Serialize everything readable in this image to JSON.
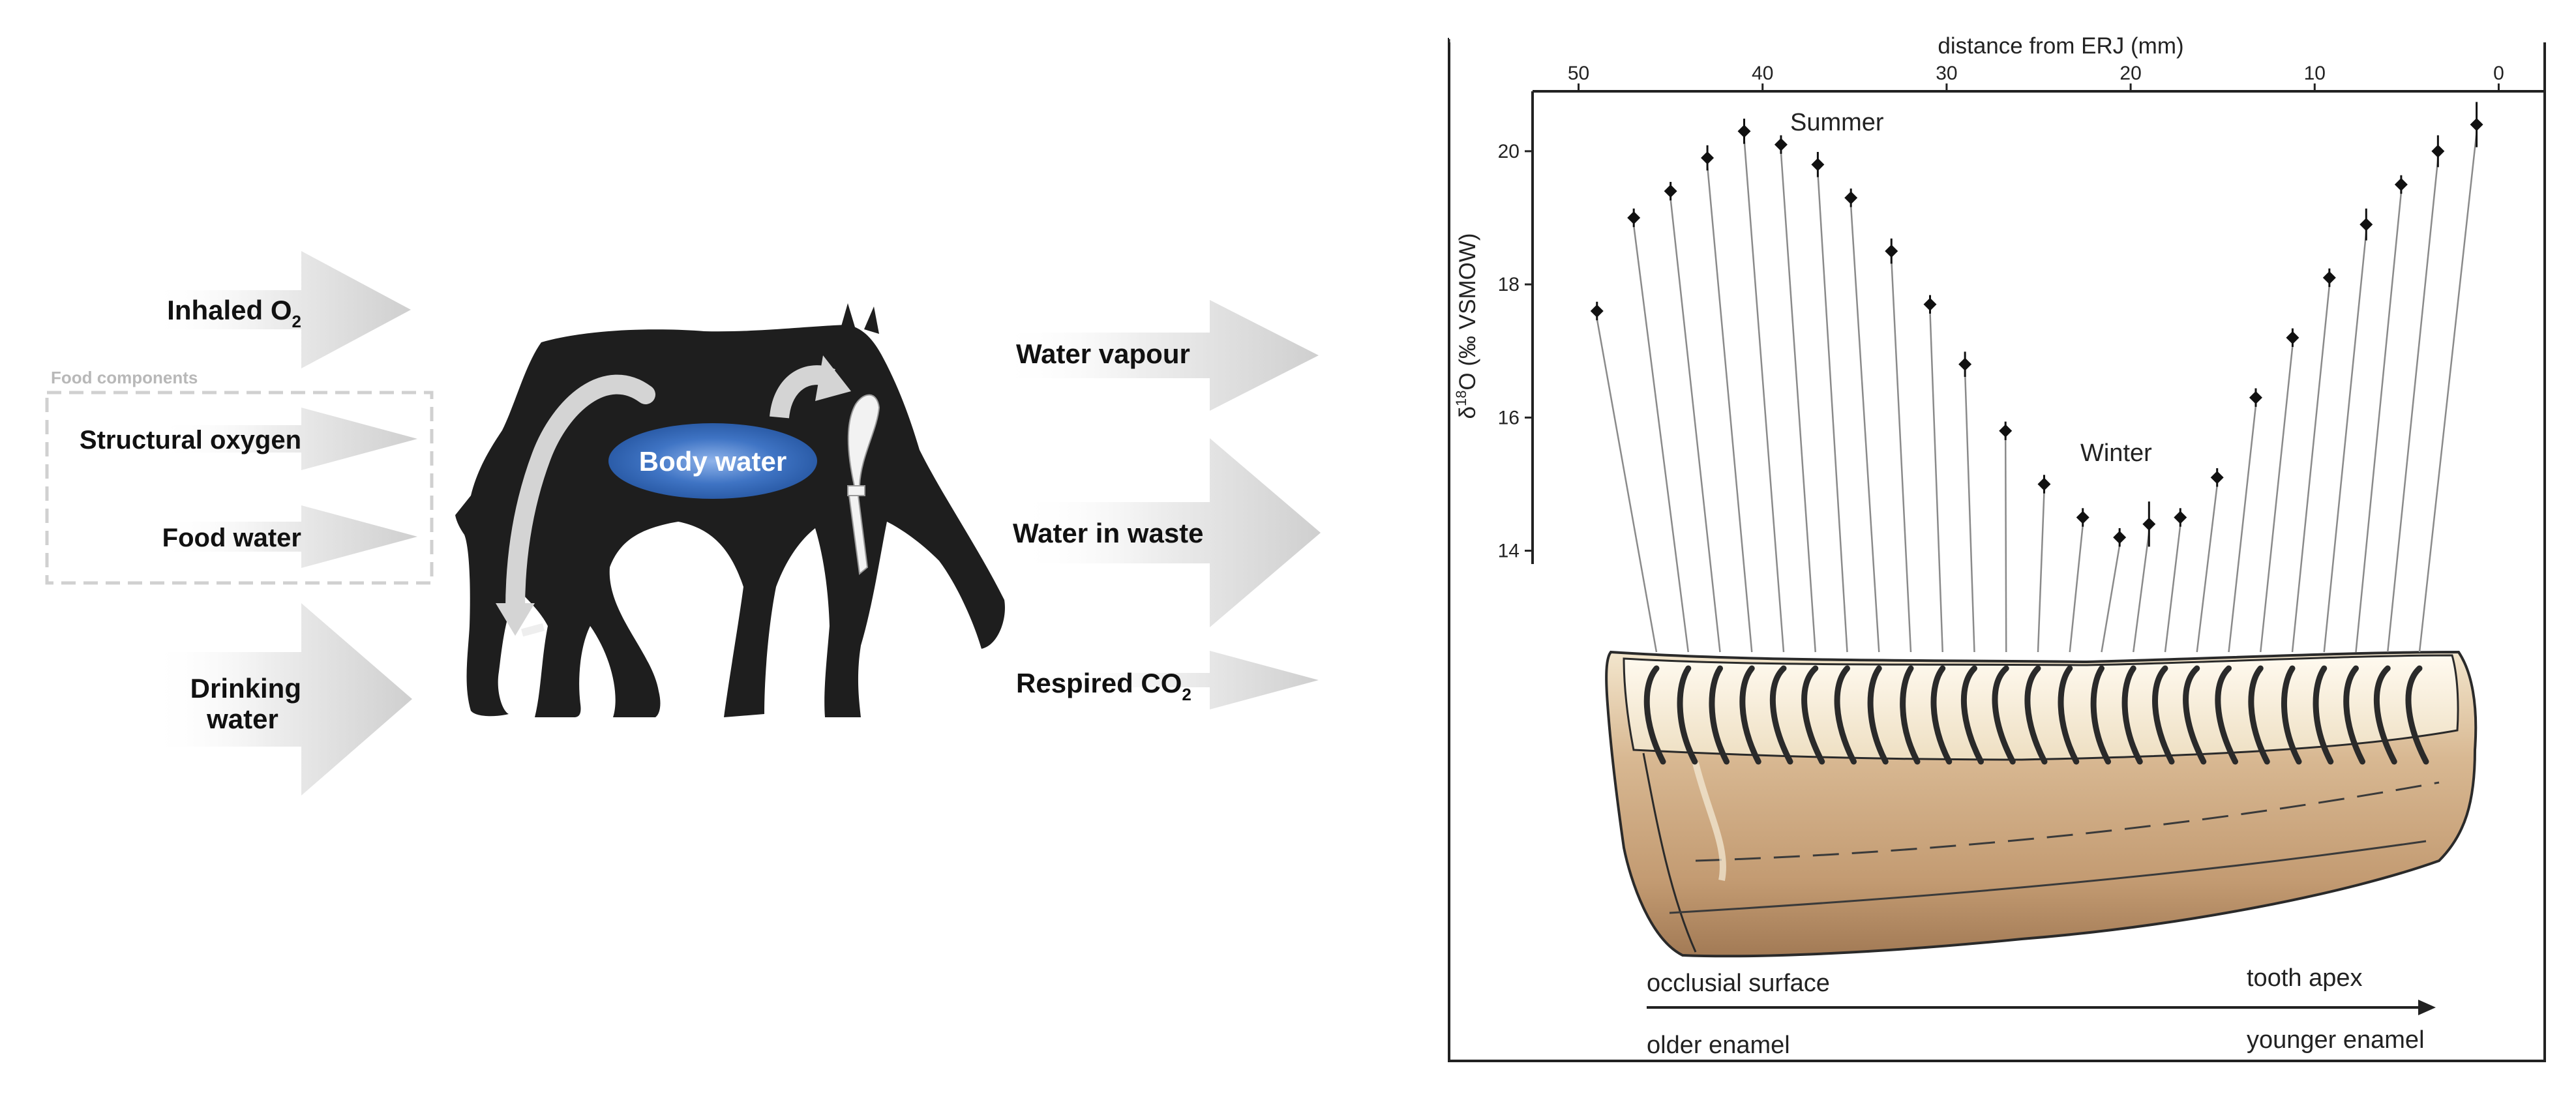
{
  "left_diagram": {
    "inputs": {
      "inhaled_o2": {
        "text": "Inhaled O",
        "sub": "2"
      },
      "food_group_label": "Food components",
      "structural_oxygen": "Structural oxygen",
      "food_water": "Food water",
      "drinking_water_line1": "Drinking",
      "drinking_water_line2": "water"
    },
    "center": {
      "body_water": "Body water"
    },
    "outputs": {
      "water_vapour": "Water vapour",
      "water_in_waste": "Water in waste",
      "respired_co2": {
        "text": "Respired CO",
        "sub": "2"
      }
    }
  },
  "chart_data": {
    "type": "scatter",
    "x_axis_title": "distance from ERJ (mm)",
    "x_ticks": [
      50,
      40,
      30,
      20,
      10,
      0
    ],
    "x_range": [
      52.5,
      -2.5
    ],
    "y_axis_title": {
      "prefix": "δ",
      "sup": "18",
      "suffix": "O (‰ VSMOW)"
    },
    "y_ticks": [
      14,
      16,
      18,
      20
    ],
    "y_range": [
      13.8,
      20.9
    ],
    "annotations": {
      "summer": "Summer",
      "winter": "Winter"
    },
    "points": [
      {
        "x": 49.0,
        "y": 17.6,
        "err": 0.1
      },
      {
        "x": 47.0,
        "y": 19.0,
        "err": 0.1
      },
      {
        "x": 45.0,
        "y": 19.4,
        "err": 0.1
      },
      {
        "x": 43.0,
        "y": 19.9,
        "err": 0.15
      },
      {
        "x": 41.0,
        "y": 20.3,
        "err": 0.15
      },
      {
        "x": 39.0,
        "y": 20.1,
        "err": 0.1
      },
      {
        "x": 37.0,
        "y": 19.8,
        "err": 0.15
      },
      {
        "x": 35.2,
        "y": 19.3,
        "err": 0.1
      },
      {
        "x": 33.0,
        "y": 18.5,
        "err": 0.15
      },
      {
        "x": 30.9,
        "y": 17.7,
        "err": 0.1
      },
      {
        "x": 29.0,
        "y": 16.8,
        "err": 0.15
      },
      {
        "x": 26.8,
        "y": 15.8,
        "err": 0.1
      },
      {
        "x": 24.7,
        "y": 15.0,
        "err": 0.1
      },
      {
        "x": 22.6,
        "y": 14.5,
        "err": 0.1
      },
      {
        "x": 20.6,
        "y": 14.2,
        "err": 0.1
      },
      {
        "x": 19.0,
        "y": 14.4,
        "err": 0.3
      },
      {
        "x": 17.3,
        "y": 14.5,
        "err": 0.1
      },
      {
        "x": 15.3,
        "y": 15.1,
        "err": 0.1
      },
      {
        "x": 13.2,
        "y": 16.3,
        "err": 0.1
      },
      {
        "x": 11.2,
        "y": 17.2,
        "err": 0.1
      },
      {
        "x": 9.2,
        "y": 18.1,
        "err": 0.1
      },
      {
        "x": 7.2,
        "y": 18.9,
        "err": 0.2
      },
      {
        "x": 5.3,
        "y": 19.5,
        "err": 0.1
      },
      {
        "x": 3.3,
        "y": 20.0,
        "err": 0.2
      },
      {
        "x": 1.2,
        "y": 20.4,
        "err": 0.3
      }
    ],
    "tooth_labels": {
      "occlusial_surface": "occlusial surface",
      "tooth_apex": "tooth apex",
      "older_enamel": "older enamel",
      "younger_enamel": "younger enamel"
    }
  },
  "colors": {
    "horse": "#1e1e1e",
    "body_water": "#3f74c4",
    "arrow": "#d6d6d6",
    "tooth_body": "#c9a47e",
    "tooth_top": "#f7efdc",
    "series": "#111111"
  }
}
